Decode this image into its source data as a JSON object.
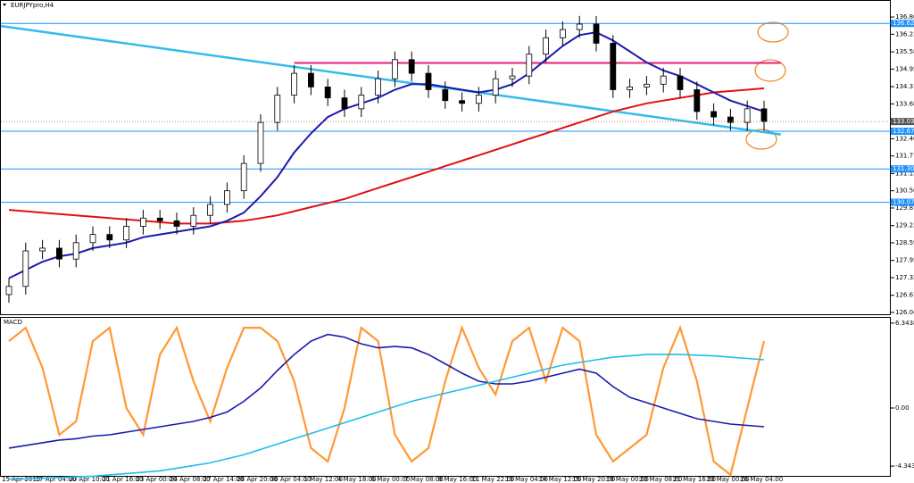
{
  "chart_data": [
    {
      "type": "candlestick",
      "title": "EURJPYpro,H4",
      "categories": [
        "15 Apr 2015",
        null,
        "17 Apr 04:00",
        null,
        "20 Apr 10:00",
        null,
        "21 Apr 16:00",
        null,
        "23 Apr 00:00",
        null,
        "24 Apr 08:00",
        null,
        "27 Apr 14:00",
        null,
        "28 Apr 20:00",
        null,
        "30 Apr 04:00",
        null,
        "1 May 12:00",
        null,
        "4 May 18:00",
        null,
        "6 May 00:00",
        null,
        "7 May 08:00",
        null,
        "8 May 16:00",
        null,
        "11 May 22:00",
        null,
        "13 May 04:00",
        null,
        "14 May 12:00",
        null,
        "15 May 20:00",
        null,
        "19 May 00:00",
        null,
        "20 May 08:00",
        null,
        "21 May 16:00",
        null,
        "23 May 00:00",
        null,
        "26 May 04:00",
        null
      ],
      "open": [
        126.7,
        127.0,
        128.3,
        128.4,
        128.0,
        128.6,
        128.9,
        128.7,
        129.2,
        129.5,
        129.4,
        129.2,
        129.6,
        130.0,
        130.5,
        131.5,
        133.0,
        134.0,
        134.8,
        134.3,
        133.9,
        133.5,
        134.0,
        134.6,
        135.3,
        134.8,
        134.2,
        133.8,
        133.7,
        134.0,
        134.6,
        134.7,
        135.5,
        136.1,
        136.4,
        136.6,
        135.9,
        134.2,
        134.3,
        134.4,
        134.7,
        134.2,
        133.4,
        133.2,
        133.0,
        133.5
      ],
      "close": [
        127.0,
        128.3,
        128.4,
        128.0,
        128.6,
        128.9,
        128.7,
        129.2,
        129.5,
        129.4,
        129.2,
        129.6,
        130.0,
        130.5,
        131.5,
        133.0,
        134.0,
        134.8,
        134.3,
        133.9,
        133.5,
        134.0,
        134.6,
        135.3,
        134.8,
        134.2,
        133.8,
        133.7,
        134.0,
        134.6,
        134.7,
        135.5,
        136.1,
        136.4,
        136.6,
        135.9,
        134.2,
        134.3,
        134.4,
        134.7,
        134.2,
        133.4,
        133.2,
        133.0,
        133.5,
        133.034
      ],
      "high": [
        127.3,
        128.6,
        128.7,
        128.7,
        128.9,
        129.2,
        129.2,
        129.5,
        129.8,
        129.8,
        129.7,
        129.9,
        130.3,
        130.8,
        131.8,
        133.3,
        134.3,
        135.1,
        135.1,
        134.6,
        134.2,
        134.3,
        134.9,
        135.6,
        135.6,
        135.1,
        134.5,
        134.1,
        134.3,
        134.9,
        135.0,
        135.8,
        136.4,
        136.7,
        136.9,
        136.9,
        136.2,
        134.6,
        134.7,
        135.0,
        135.0,
        134.5,
        133.7,
        133.5,
        133.8,
        133.8
      ],
      "low": [
        126.4,
        126.7,
        128.0,
        127.7,
        127.7,
        128.3,
        128.4,
        128.4,
        128.9,
        129.1,
        128.9,
        128.9,
        129.3,
        129.7,
        130.2,
        131.2,
        132.7,
        133.7,
        134.0,
        133.6,
        133.2,
        133.2,
        133.7,
        134.3,
        134.5,
        133.9,
        133.5,
        133.4,
        133.4,
        133.7,
        134.3,
        134.4,
        135.2,
        135.8,
        136.1,
        135.6,
        133.9,
        133.9,
        134.0,
        134.1,
        133.9,
        133.1,
        132.9,
        132.7,
        132.7,
        132.7
      ],
      "up_color": "#ffffff",
      "down_color": "#000000",
      "lines": [
        {
          "color": "#e01010",
          "values": [
            129.8,
            129.75,
            129.7,
            129.65,
            129.6,
            129.55,
            129.5,
            129.45,
            129.4,
            129.35,
            129.3,
            129.3,
            129.3,
            129.35,
            129.4,
            129.5,
            129.6,
            129.75,
            129.9,
            130.05,
            130.2,
            130.4,
            130.6,
            130.8,
            131.0,
            131.2,
            131.4,
            131.6,
            131.8,
            132.0,
            132.2,
            132.4,
            132.6,
            132.8,
            133.0,
            133.2,
            133.4,
            133.55,
            133.7,
            133.8,
            133.9,
            134.0,
            134.1,
            134.15,
            134.2,
            134.25
          ]
        },
        {
          "color": "#1a1ab0",
          "values": [
            127.3,
            127.6,
            127.9,
            128.1,
            128.2,
            128.4,
            128.5,
            128.6,
            128.8,
            128.9,
            129.0,
            129.1,
            129.2,
            129.4,
            129.7,
            130.3,
            131.0,
            131.9,
            132.6,
            133.2,
            133.5,
            133.7,
            133.9,
            134.2,
            134.4,
            134.4,
            134.3,
            134.2,
            134.1,
            134.2,
            134.4,
            134.8,
            135.3,
            135.8,
            136.2,
            136.3,
            136.0,
            135.6,
            135.2,
            134.9,
            134.7,
            134.4,
            134.1,
            133.8,
            133.6,
            133.4
          ]
        }
      ],
      "levels": [
        136.626,
        132.679,
        131.3,
        130.079
      ],
      "level_labels": [
        "136.626",
        "132.679",
        "131.300",
        "130.079"
      ],
      "level_color": "#1e90ff",
      "resistance": 135.18,
      "resistance_color": "#e0207a",
      "trendline": [
        136.53,
        132.56
      ],
      "trendline_color": "#33bbee",
      "ylim": [
        125.98,
        137.45
      ],
      "yticks": [
        {
          "value": 136.86,
          "label": "136.860"
        },
        {
          "value": 136.23,
          "label": "136.230"
        },
        135.585,
        134.955,
        {
          "value": 134.31,
          "label": "134.310"
        },
        {
          "value": 133.68,
          "label": "133.680"
        },
        132.405,
        131.775,
        {
          "value": 131.13,
          "label": "131.130"
        },
        {
          "value": 130.5,
          "label": "130.500"
        },
        {
          "value": 129.87,
          "label": "129.870"
        },
        129.225,
        128.595,
        {
          "value": 127.95,
          "label": "127.950"
        },
        {
          "value": 127.32,
          "label": "127.320"
        },
        126.675,
        126.049
      ]
    },
    {
      "type": "line",
      "title": "MACD",
      "series": [
        {
          "color": "#ff9933",
          "values": [
            5,
            6,
            3,
            -2,
            -1,
            5,
            6,
            0,
            -2,
            4,
            6,
            2,
            -1,
            3,
            6,
            6,
            5,
            2,
            -3,
            -4,
            0,
            6,
            5,
            -2,
            -4,
            -3,
            2,
            6,
            3,
            1,
            5,
            6,
            2,
            6,
            5,
            -2,
            -4,
            -3,
            -2,
            3,
            6,
            2,
            -4,
            -5,
            0,
            5
          ]
        },
        {
          "color": "#1a1ab0",
          "values": [
            -3,
            -2.8,
            -2.6,
            -2.4,
            -2.3,
            -2.1,
            -2.0,
            -1.8,
            -1.6,
            -1.4,
            -1.2,
            -1.0,
            -0.7,
            -0.3,
            0.5,
            1.5,
            2.8,
            4.0,
            5.0,
            5.5,
            5.3,
            4.8,
            4.5,
            4.6,
            4.5,
            4.0,
            3.3,
            2.6,
            2.0,
            1.8,
            1.8,
            2.0,
            2.3,
            2.6,
            2.9,
            2.6,
            1.6,
            0.8,
            0.4,
            0.0,
            -0.4,
            -0.8,
            -1.0,
            -1.2,
            -1.3,
            -1.4
          ]
        },
        {
          "color": "#22bbee",
          "values": [
            -5.3,
            -5.3,
            -5.25,
            -5.2,
            -5.15,
            -5.1,
            -5.0,
            -4.9,
            -4.8,
            -4.7,
            -4.5,
            -4.3,
            -4.1,
            -3.8,
            -3.5,
            -3.1,
            -2.7,
            -2.3,
            -1.9,
            -1.5,
            -1.1,
            -0.7,
            -0.3,
            0.1,
            0.5,
            0.8,
            1.1,
            1.4,
            1.7,
            2.0,
            2.3,
            2.6,
            2.9,
            3.2,
            3.4,
            3.6,
            3.8,
            3.9,
            4.0,
            4.0,
            4.0,
            3.95,
            3.9,
            3.8,
            3.7,
            3.6
          ]
        }
      ],
      "ylim": [
        -5.14,
        6.74
      ],
      "yticks": [
        6.3438,
        {
          "value": 0,
          "label": "0.00"
        },
        -4.3438
      ]
    }
  ]
}
